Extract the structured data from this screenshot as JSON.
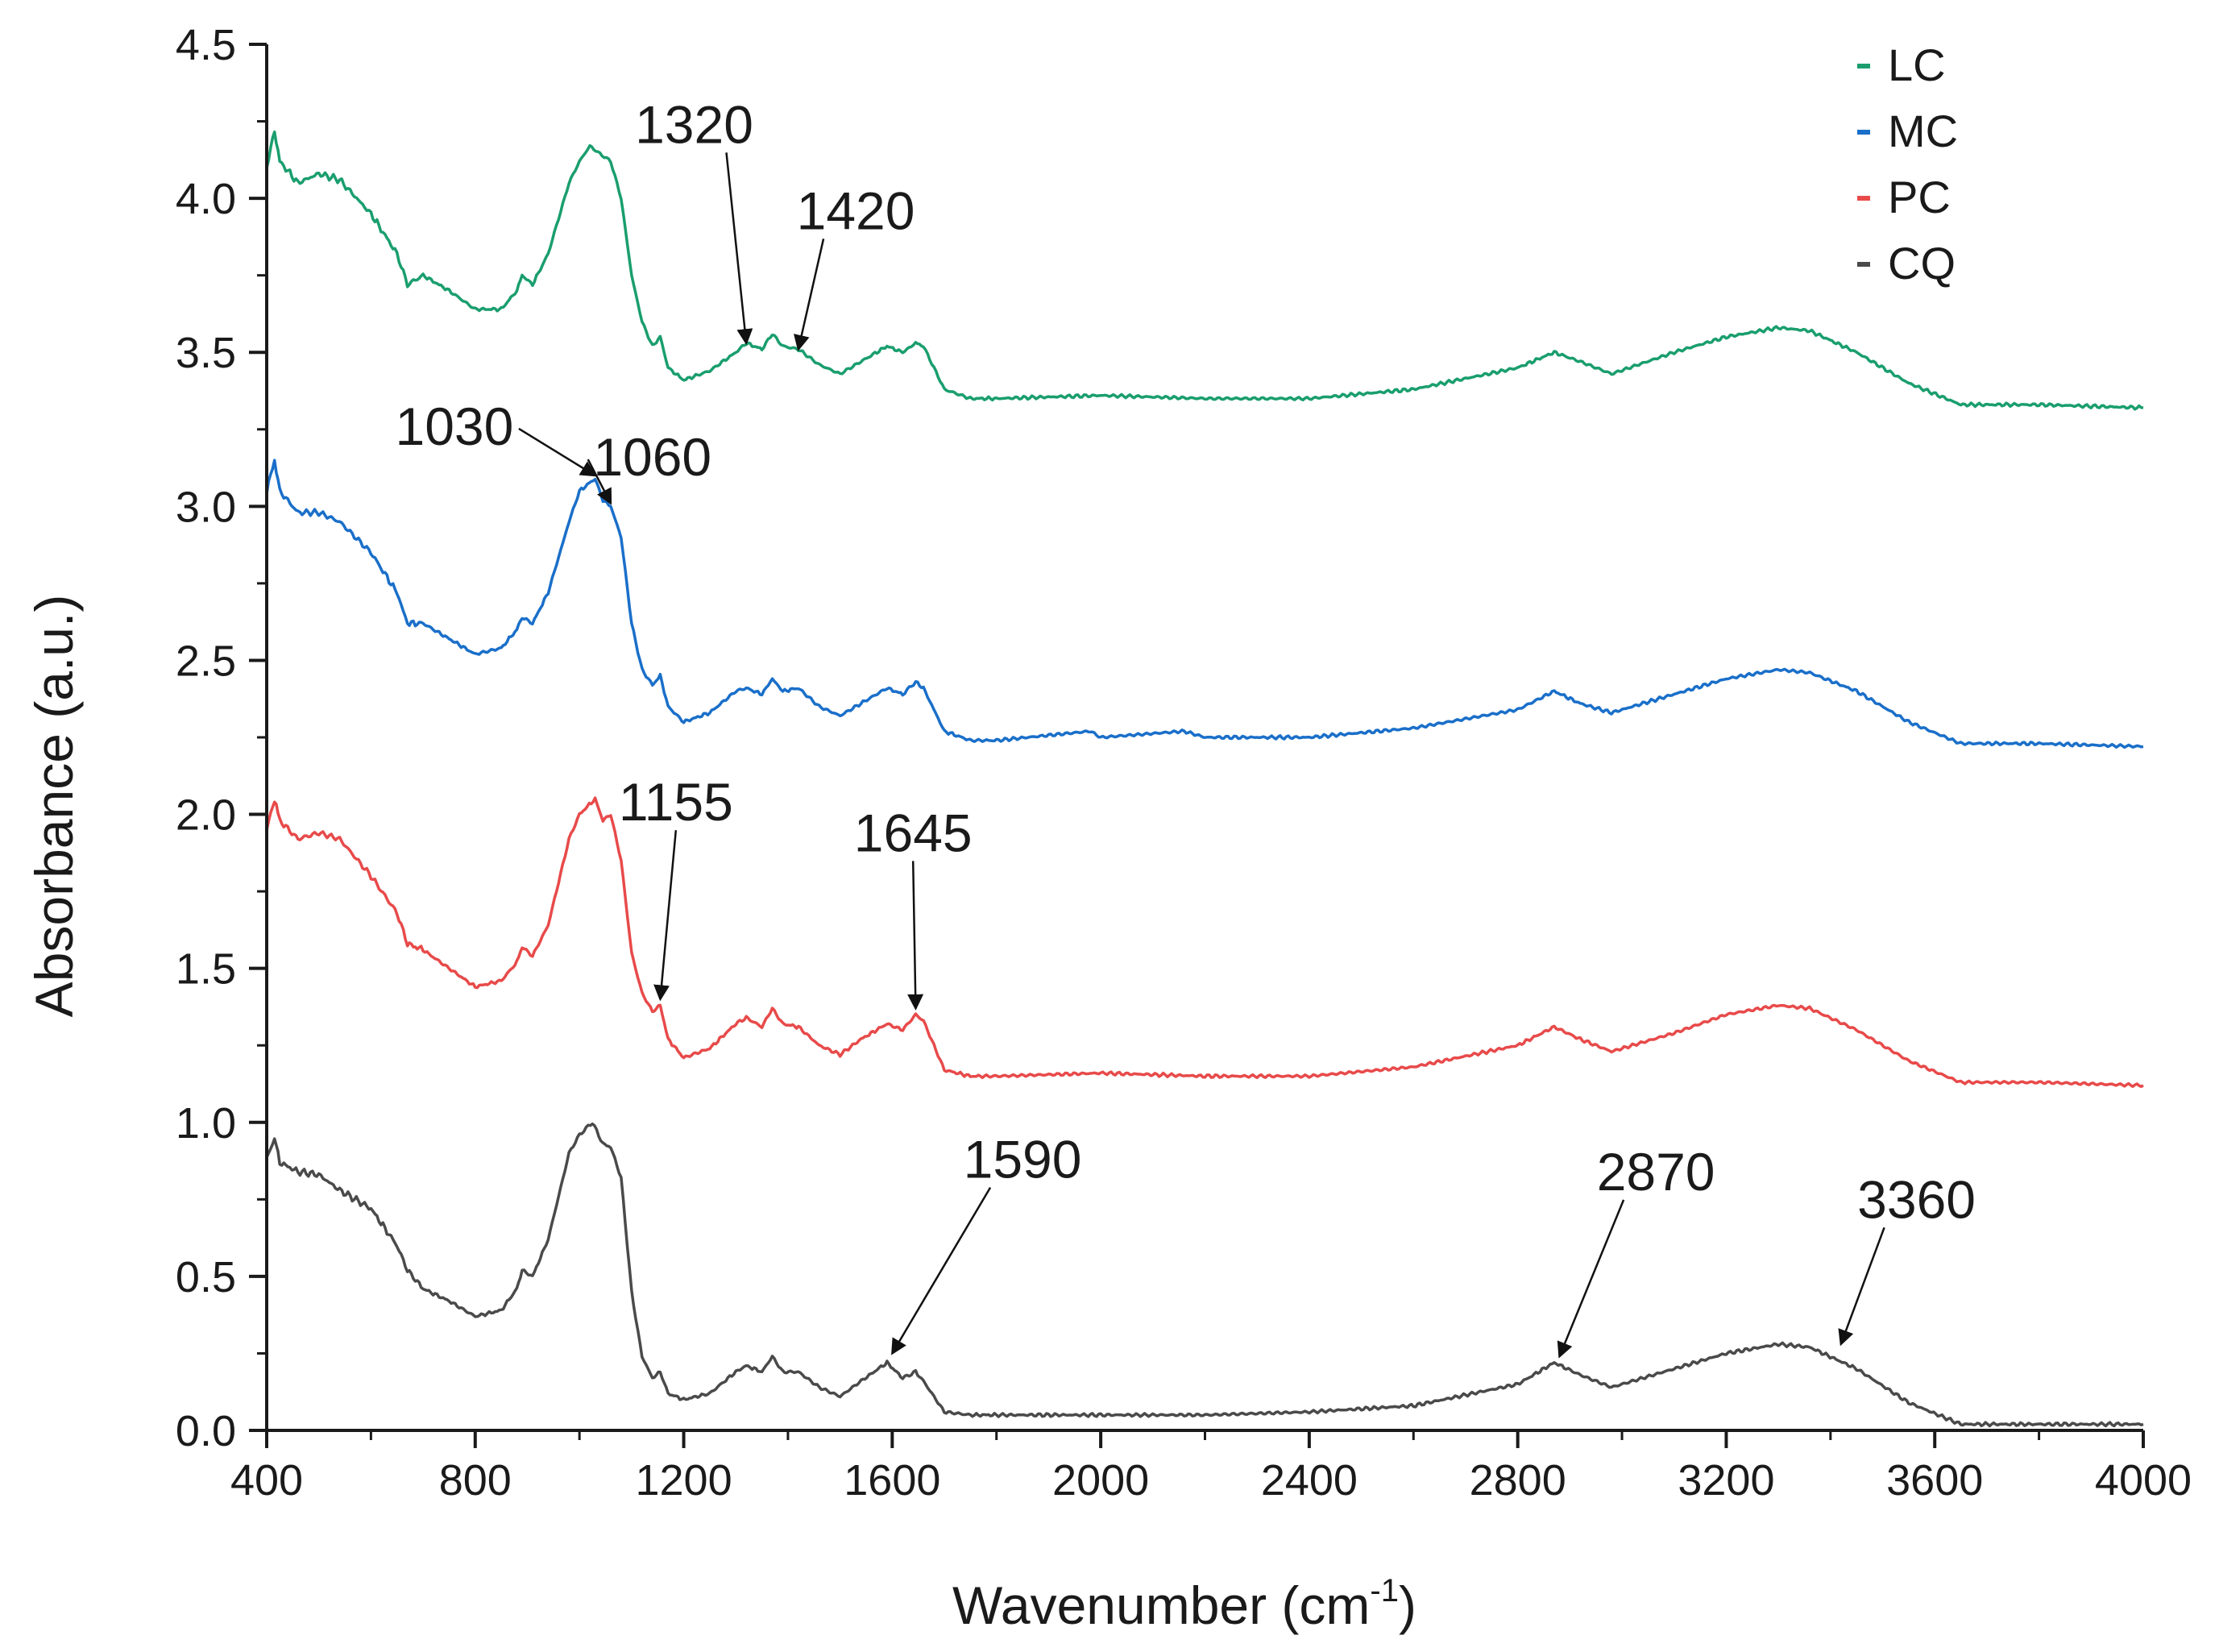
{
  "chart_data": {
    "type": "line",
    "title": "",
    "xlabel_main": "Wavenumber (cm",
    "xlabel_sup": "-1",
    "xlabel_close": ")",
    "ylabel": "Absorbance (a.u.)",
    "xlim": [
      400,
      4000
    ],
    "ylim": [
      0.0,
      4.5
    ],
    "xticks": [
      400,
      800,
      1200,
      1600,
      2000,
      2400,
      2800,
      3200,
      3600,
      4000
    ],
    "yticks": [
      "0.0",
      "0.5",
      "1.0",
      "1.5",
      "2.0",
      "2.5",
      "3.0",
      "3.5",
      "4.0",
      "4.5"
    ],
    "legend_position": "top-right",
    "series": [
      {
        "name": "LC",
        "color": "#1a9e6e",
        "offset": 3.32,
        "points": [
          [
            400,
            4.1
          ],
          [
            415,
            4.22
          ],
          [
            425,
            4.12
          ],
          [
            460,
            4.05
          ],
          [
            500,
            4.08
          ],
          [
            540,
            4.06
          ],
          [
            600,
            3.95
          ],
          [
            650,
            3.82
          ],
          [
            670,
            3.72
          ],
          [
            700,
            3.75
          ],
          [
            750,
            3.7
          ],
          [
            800,
            3.64
          ],
          [
            850,
            3.64
          ],
          [
            880,
            3.7
          ],
          [
            890,
            3.75
          ],
          [
            910,
            3.72
          ],
          [
            940,
            3.82
          ],
          [
            980,
            4.05
          ],
          [
            1000,
            4.12
          ],
          [
            1020,
            4.17
          ],
          [
            1035,
            4.15
          ],
          [
            1060,
            4.12
          ],
          [
            1080,
            4.0
          ],
          [
            1100,
            3.75
          ],
          [
            1120,
            3.6
          ],
          [
            1140,
            3.52
          ],
          [
            1155,
            3.55
          ],
          [
            1170,
            3.45
          ],
          [
            1200,
            3.41
          ],
          [
            1250,
            3.44
          ],
          [
            1300,
            3.5
          ],
          [
            1320,
            3.53
          ],
          [
            1350,
            3.51
          ],
          [
            1370,
            3.56
          ],
          [
            1390,
            3.52
          ],
          [
            1420,
            3.51
          ],
          [
            1460,
            3.46
          ],
          [
            1500,
            3.43
          ],
          [
            1540,
            3.47
          ],
          [
            1590,
            3.52
          ],
          [
            1620,
            3.5
          ],
          [
            1645,
            3.53
          ],
          [
            1660,
            3.52
          ],
          [
            1700,
            3.38
          ],
          [
            1750,
            3.35
          ],
          [
            1800,
            3.35
          ],
          [
            2000,
            3.36
          ],
          [
            2200,
            3.35
          ],
          [
            2400,
            3.35
          ],
          [
            2600,
            3.38
          ],
          [
            2800,
            3.45
          ],
          [
            2870,
            3.5
          ],
          [
            2920,
            3.47
          ],
          [
            2980,
            3.43
          ],
          [
            3100,
            3.5
          ],
          [
            3200,
            3.55
          ],
          [
            3300,
            3.58
          ],
          [
            3360,
            3.57
          ],
          [
            3450,
            3.5
          ],
          [
            3550,
            3.4
          ],
          [
            3650,
            3.33
          ],
          [
            3800,
            3.33
          ],
          [
            4000,
            3.32
          ]
        ]
      },
      {
        "name": "MC",
        "color": "#1a6fc9",
        "offset": 2.22,
        "points": [
          [
            400,
            3.05
          ],
          [
            415,
            3.15
          ],
          [
            425,
            3.05
          ],
          [
            460,
            2.98
          ],
          [
            500,
            2.98
          ],
          [
            540,
            2.95
          ],
          [
            600,
            2.85
          ],
          [
            650,
            2.72
          ],
          [
            670,
            2.62
          ],
          [
            700,
            2.62
          ],
          [
            750,
            2.57
          ],
          [
            800,
            2.52
          ],
          [
            850,
            2.54
          ],
          [
            880,
            2.6
          ],
          [
            890,
            2.64
          ],
          [
            910,
            2.62
          ],
          [
            940,
            2.72
          ],
          [
            980,
            2.95
          ],
          [
            1000,
            3.05
          ],
          [
            1030,
            3.09
          ],
          [
            1045,
            3.02
          ],
          [
            1060,
            3.0
          ],
          [
            1080,
            2.9
          ],
          [
            1100,
            2.62
          ],
          [
            1120,
            2.47
          ],
          [
            1140,
            2.42
          ],
          [
            1155,
            2.45
          ],
          [
            1170,
            2.35
          ],
          [
            1200,
            2.3
          ],
          [
            1250,
            2.33
          ],
          [
            1300,
            2.4
          ],
          [
            1320,
            2.41
          ],
          [
            1350,
            2.39
          ],
          [
            1370,
            2.44
          ],
          [
            1390,
            2.4
          ],
          [
            1420,
            2.41
          ],
          [
            1460,
            2.35
          ],
          [
            1500,
            2.32
          ],
          [
            1540,
            2.36
          ],
          [
            1590,
            2.41
          ],
          [
            1620,
            2.39
          ],
          [
            1645,
            2.43
          ],
          [
            1660,
            2.41
          ],
          [
            1700,
            2.27
          ],
          [
            1750,
            2.24
          ],
          [
            1800,
            2.24
          ],
          [
            1980,
            2.27
          ],
          [
            2000,
            2.25
          ],
          [
            2160,
            2.27
          ],
          [
            2200,
            2.25
          ],
          [
            2400,
            2.25
          ],
          [
            2600,
            2.28
          ],
          [
            2800,
            2.34
          ],
          [
            2870,
            2.4
          ],
          [
            2920,
            2.36
          ],
          [
            2980,
            2.33
          ],
          [
            3100,
            2.39
          ],
          [
            3200,
            2.44
          ],
          [
            3300,
            2.47
          ],
          [
            3360,
            2.46
          ],
          [
            3450,
            2.4
          ],
          [
            3550,
            2.3
          ],
          [
            3650,
            2.23
          ],
          [
            3800,
            2.23
          ],
          [
            4000,
            2.22
          ]
        ]
      },
      {
        "name": "PC",
        "color": "#e84a4a",
        "offset": 1.12,
        "points": [
          [
            400,
            1.95
          ],
          [
            415,
            2.05
          ],
          [
            425,
            1.98
          ],
          [
            460,
            1.92
          ],
          [
            500,
            1.94
          ],
          [
            540,
            1.92
          ],
          [
            600,
            1.8
          ],
          [
            650,
            1.68
          ],
          [
            670,
            1.58
          ],
          [
            700,
            1.56
          ],
          [
            750,
            1.5
          ],
          [
            800,
            1.44
          ],
          [
            850,
            1.46
          ],
          [
            880,
            1.52
          ],
          [
            890,
            1.57
          ],
          [
            910,
            1.54
          ],
          [
            940,
            1.64
          ],
          [
            980,
            1.92
          ],
          [
            1000,
            2.0
          ],
          [
            1030,
            2.05
          ],
          [
            1045,
            1.98
          ],
          [
            1060,
            2.0
          ],
          [
            1080,
            1.85
          ],
          [
            1100,
            1.55
          ],
          [
            1120,
            1.42
          ],
          [
            1140,
            1.36
          ],
          [
            1155,
            1.38
          ],
          [
            1170,
            1.27
          ],
          [
            1200,
            1.21
          ],
          [
            1250,
            1.24
          ],
          [
            1300,
            1.32
          ],
          [
            1320,
            1.34
          ],
          [
            1350,
            1.31
          ],
          [
            1370,
            1.37
          ],
          [
            1390,
            1.32
          ],
          [
            1420,
            1.31
          ],
          [
            1460,
            1.25
          ],
          [
            1500,
            1.22
          ],
          [
            1540,
            1.27
          ],
          [
            1590,
            1.32
          ],
          [
            1620,
            1.3
          ],
          [
            1645,
            1.35
          ],
          [
            1660,
            1.33
          ],
          [
            1700,
            1.17
          ],
          [
            1750,
            1.15
          ],
          [
            1800,
            1.15
          ],
          [
            2000,
            1.16
          ],
          [
            2200,
            1.15
          ],
          [
            2400,
            1.15
          ],
          [
            2600,
            1.18
          ],
          [
            2800,
            1.25
          ],
          [
            2870,
            1.31
          ],
          [
            2920,
            1.27
          ],
          [
            2980,
            1.23
          ],
          [
            3100,
            1.29
          ],
          [
            3200,
            1.35
          ],
          [
            3300,
            1.38
          ],
          [
            3360,
            1.37
          ],
          [
            3450,
            1.3
          ],
          [
            3550,
            1.2
          ],
          [
            3650,
            1.13
          ],
          [
            3800,
            1.13
          ],
          [
            4000,
            1.12
          ]
        ]
      },
      {
        "name": "CQ",
        "color": "#4a4a4a",
        "offset": 0.0,
        "points": [
          [
            400,
            0.88
          ],
          [
            415,
            0.95
          ],
          [
            425,
            0.87
          ],
          [
            460,
            0.84
          ],
          [
            500,
            0.83
          ],
          [
            540,
            0.78
          ],
          [
            600,
            0.72
          ],
          [
            650,
            0.6
          ],
          [
            670,
            0.52
          ],
          [
            700,
            0.46
          ],
          [
            750,
            0.42
          ],
          [
            800,
            0.37
          ],
          [
            850,
            0.39
          ],
          [
            880,
            0.46
          ],
          [
            890,
            0.52
          ],
          [
            910,
            0.5
          ],
          [
            940,
            0.62
          ],
          [
            980,
            0.9
          ],
          [
            1000,
            0.96
          ],
          [
            1025,
            1.0
          ],
          [
            1045,
            0.93
          ],
          [
            1060,
            0.92
          ],
          [
            1080,
            0.82
          ],
          [
            1100,
            0.45
          ],
          [
            1120,
            0.24
          ],
          [
            1140,
            0.17
          ],
          [
            1155,
            0.19
          ],
          [
            1170,
            0.12
          ],
          [
            1200,
            0.1
          ],
          [
            1250,
            0.12
          ],
          [
            1300,
            0.19
          ],
          [
            1320,
            0.21
          ],
          [
            1350,
            0.19
          ],
          [
            1370,
            0.24
          ],
          [
            1390,
            0.19
          ],
          [
            1420,
            0.19
          ],
          [
            1460,
            0.14
          ],
          [
            1500,
            0.11
          ],
          [
            1540,
            0.16
          ],
          [
            1590,
            0.22
          ],
          [
            1620,
            0.17
          ],
          [
            1645,
            0.19
          ],
          [
            1660,
            0.16
          ],
          [
            1700,
            0.06
          ],
          [
            1750,
            0.05
          ],
          [
            1800,
            0.05
          ],
          [
            2000,
            0.05
          ],
          [
            2200,
            0.05
          ],
          [
            2400,
            0.06
          ],
          [
            2600,
            0.08
          ],
          [
            2800,
            0.15
          ],
          [
            2870,
            0.22
          ],
          [
            2920,
            0.18
          ],
          [
            2980,
            0.14
          ],
          [
            3100,
            0.2
          ],
          [
            3200,
            0.25
          ],
          [
            3300,
            0.28
          ],
          [
            3360,
            0.27
          ],
          [
            3450,
            0.2
          ],
          [
            3550,
            0.09
          ],
          [
            3650,
            0.02
          ],
          [
            3800,
            0.02
          ],
          [
            4000,
            0.02
          ]
        ]
      }
    ],
    "annotations": [
      {
        "text": "1320",
        "label": [
          1220,
          4.18
        ],
        "arrow_to": [
          1320,
          3.53
        ]
      },
      {
        "text": "1420",
        "label": [
          1530,
          3.9
        ],
        "arrow_to": [
          1420,
          3.51
        ]
      },
      {
        "text": "1030",
        "label": [
          760,
          3.2
        ],
        "arrow_to": [
          1030,
          3.1
        ]
      },
      {
        "text": "1060",
        "label": [
          1140,
          3.1
        ],
        "arrow_to": [
          1060,
          3.01
        ]
      },
      {
        "text": "1155",
        "label": [
          1185,
          1.98
        ],
        "arrow_to": [
          1155,
          1.4
        ]
      },
      {
        "text": "1645",
        "label": [
          1640,
          1.88
        ],
        "arrow_to": [
          1645,
          1.37
        ]
      },
      {
        "text": "1590",
        "label": [
          1850,
          0.82
        ],
        "arrow_to": [
          1600,
          0.25
        ]
      },
      {
        "text": "2870",
        "label": [
          3065,
          0.78
        ],
        "arrow_to": [
          2880,
          0.24
        ]
      },
      {
        "text": "3360",
        "label": [
          3565,
          0.69
        ],
        "arrow_to": [
          3420,
          0.28
        ]
      }
    ]
  }
}
